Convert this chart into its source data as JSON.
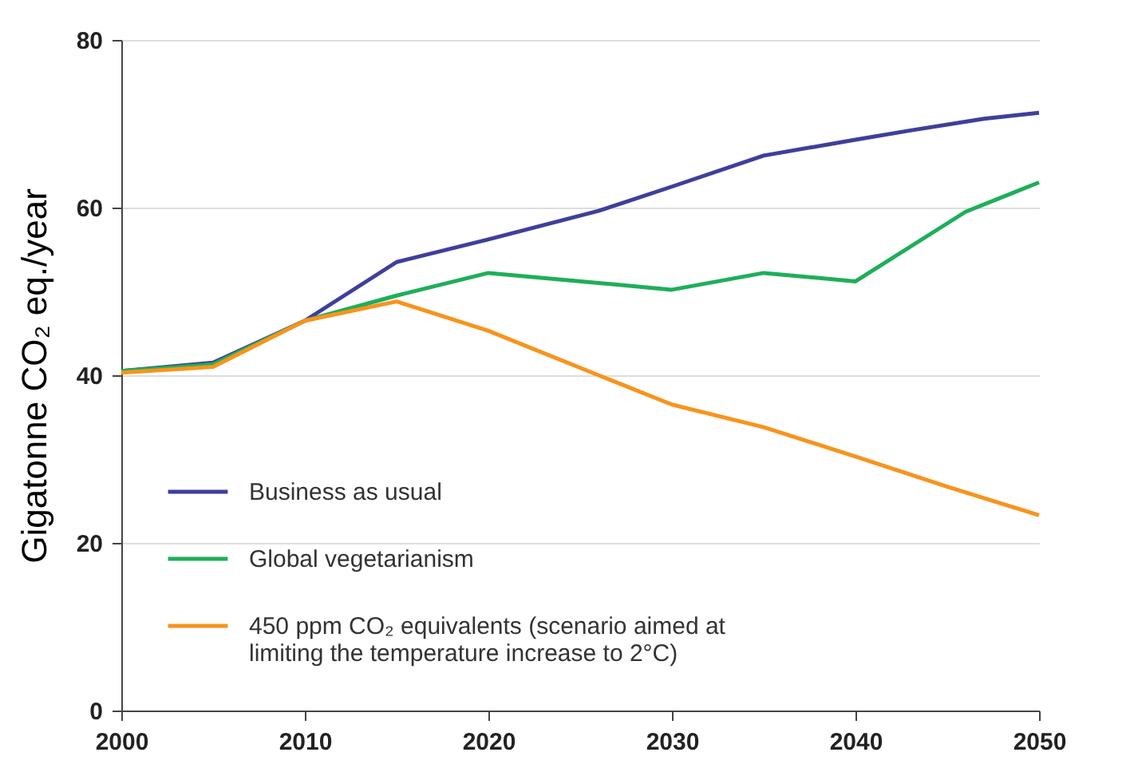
{
  "chart_data": {
    "type": "line",
    "ylabel": "Gigatonne CO₂ eq./year",
    "xlim": [
      2000,
      2050
    ],
    "xticks": [
      2000,
      2010,
      2020,
      2030,
      2040,
      2050
    ],
    "ylim": [
      0,
      80
    ],
    "yticks": [
      0,
      20,
      40,
      60,
      80
    ],
    "grid": "y",
    "legend": "bottom left",
    "series": [
      {
        "name": "Business as usual",
        "color": "#3f3f9b",
        "x": [
          2000,
          2005,
          2010,
          2015,
          2020,
          2026,
          2030,
          2035,
          2040,
          2043,
          2047,
          2050
        ],
        "values": [
          40.5,
          41.5,
          46.5,
          53.5,
          56.2,
          59.6,
          62.5,
          66.2,
          68.1,
          69.2,
          70.6,
          71.3
        ]
      },
      {
        "name": "Global vegetarianism",
        "color": "#1fae5a",
        "x": [
          2000,
          2005,
          2010,
          2015,
          2020,
          2030,
          2035,
          2040,
          2046,
          2050
        ],
        "values": [
          40.5,
          41.3,
          46.5,
          49.5,
          52.2,
          50.2,
          52.2,
          51.2,
          59.5,
          63
        ]
      },
      {
        "name": "450 ppm CO₂ equivalents (scenario aimed at limiting the temperature increase to 2°C)",
        "color": "#f7941d",
        "x": [
          2000,
          2005,
          2010,
          2015,
          2020,
          2026,
          2030,
          2035,
          2040,
          2045,
          2050
        ],
        "values": [
          40.3,
          41,
          46.5,
          48.8,
          45.3,
          40,
          36.5,
          33.8,
          30.3,
          26.7,
          23.3
        ]
      }
    ]
  }
}
